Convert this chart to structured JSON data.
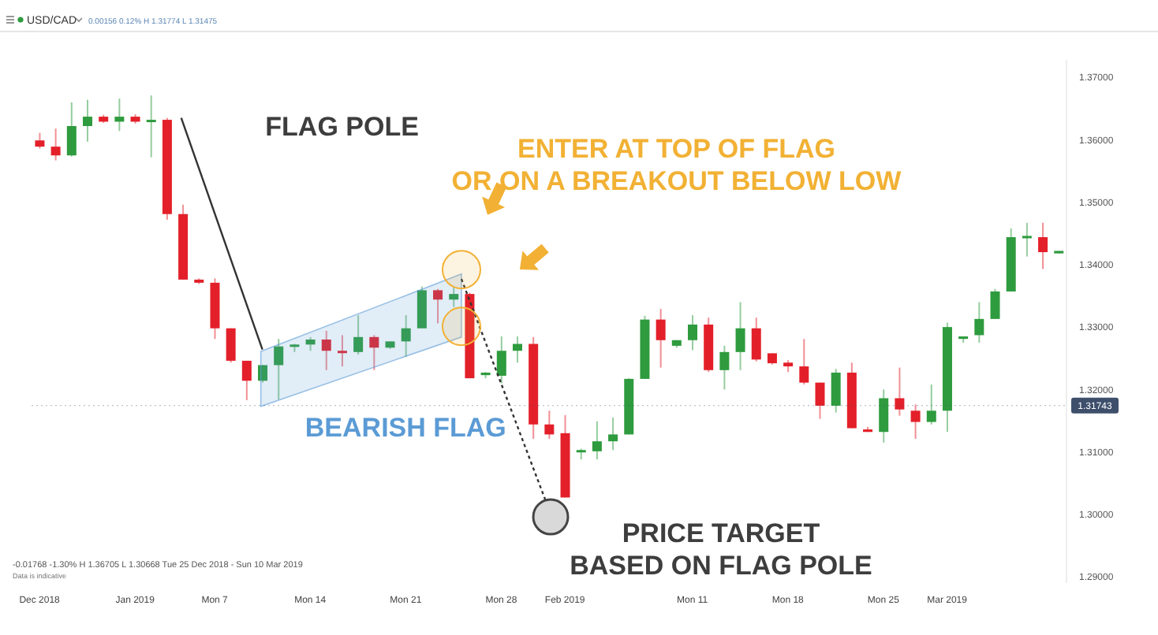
{
  "chart_data": {
    "type": "candlestick",
    "title": "USD/CAD",
    "subtitle": "0.00156 0.12% H 1.31774 L 1.31475",
    "annotations": [
      "FLAG POLE",
      "ENTER AT TOP OF FLAG\nOR ON A BREAKOUT BELOW LOW",
      "BEARISH FLAG",
      "PRICE TARGET\nBASED ON FLAG POLE",
      "-0.01768 -1.30% H 1.36705 L 1.30668 Tue 25 Dec 2018 - Sun 10 Mar 2019",
      "Data is indicative"
    ],
    "categories": [
      "Dec 2018",
      null,
      null,
      null,
      null,
      null,
      "Jan 2019",
      null,
      null,
      null,
      null,
      "Mon 7",
      null,
      null,
      null,
      null,
      null,
      "Mon 14",
      null,
      null,
      null,
      null,
      null,
      "Mon 21",
      null,
      null,
      null,
      null,
      null,
      "Mon 28",
      null,
      null,
      null,
      "Feb 2019",
      null,
      null,
      null,
      null,
      null,
      null,
      null,
      "Mon 11",
      null,
      null,
      null,
      null,
      null,
      "Mon 18",
      null,
      null,
      null,
      null,
      null,
      "Mon 25",
      null,
      null,
      null,
      "Mar 2019",
      null,
      null,
      null,
      null,
      null,
      null,
      null
    ],
    "ohlc": [
      [
        1.3599,
        1.3611,
        1.3586,
        1.3589
      ],
      [
        1.3589,
        1.3618,
        1.3567,
        1.3575
      ],
      [
        1.3575,
        1.366,
        1.3573,
        1.3622
      ],
      [
        1.3622,
        1.3664,
        1.3597,
        1.3637
      ],
      [
        1.3637,
        1.364,
        1.3627,
        1.3629
      ],
      [
        1.3629,
        1.3666,
        1.3614,
        1.3637
      ],
      [
        1.3637,
        1.3641,
        1.3626,
        1.3629
      ],
      [
        1.3629,
        1.3671,
        1.3572,
        1.3632
      ],
      [
        1.3632,
        1.3635,
        1.3472,
        1.3481
      ],
      [
        1.3481,
        1.3496,
        1.3376,
        1.3376
      ],
      [
        1.3376,
        1.3378,
        1.3369,
        1.3371
      ],
      [
        1.3371,
        1.3378,
        1.3281,
        1.3298
      ],
      [
        1.3298,
        1.3298,
        1.3243,
        1.3246
      ],
      [
        1.3246,
        1.3246,
        1.3183,
        1.3214
      ],
      [
        1.3214,
        1.3239,
        1.3211,
        1.3239
      ],
      [
        1.3239,
        1.3281,
        1.3184,
        1.3269
      ],
      [
        1.3269,
        1.3273,
        1.326,
        1.3272
      ],
      [
        1.3272,
        1.3284,
        1.3262,
        1.328
      ],
      [
        1.328,
        1.3294,
        1.3231,
        1.3262
      ],
      [
        1.3262,
        1.3287,
        1.3237,
        1.326
      ],
      [
        1.326,
        1.3319,
        1.3256,
        1.3284
      ],
      [
        1.3284,
        1.3287,
        1.3231,
        1.3267
      ],
      [
        1.3267,
        1.3277,
        1.3265,
        1.3277
      ],
      [
        1.3277,
        1.3319,
        1.3252,
        1.3298
      ],
      [
        1.3298,
        1.3365,
        1.3298,
        1.3359
      ],
      [
        1.3359,
        1.3361,
        1.3306,
        1.3344
      ],
      [
        1.3344,
        1.3365,
        1.3332,
        1.3353
      ],
      [
        1.3353,
        1.3355,
        1.3218,
        1.3218
      ],
      [
        1.3223,
        1.3228,
        1.3218,
        1.3227
      ],
      [
        1.3222,
        1.3285,
        1.321,
        1.3262
      ],
      [
        1.3262,
        1.3285,
        1.3243,
        1.3273
      ],
      [
        1.3273,
        1.3284,
        1.3121,
        1.3144
      ],
      [
        1.3144,
        1.3166,
        1.3121,
        1.3128
      ],
      [
        1.313,
        1.3159,
        1.3027,
        1.3027
      ],
      [
        1.3101,
        1.3105,
        1.3088,
        1.3103
      ],
      [
        1.3101,
        1.3149,
        1.3088,
        1.3117
      ],
      [
        1.3117,
        1.3155,
        1.3103,
        1.3128
      ],
      [
        1.3128,
        1.3218,
        1.3128,
        1.3217
      ],
      [
        1.3217,
        1.3318,
        1.3217,
        1.3312
      ],
      [
        1.3312,
        1.3329,
        1.3235,
        1.3279
      ],
      [
        1.327,
        1.3279,
        1.3267,
        1.3279
      ],
      [
        1.3279,
        1.3319,
        1.3263,
        1.3304
      ],
      [
        1.3304,
        1.3315,
        1.3228,
        1.3231
      ],
      [
        1.3231,
        1.327,
        1.32,
        1.326
      ],
      [
        1.326,
        1.334,
        1.3231,
        1.3298
      ],
      [
        1.3298,
        1.3315,
        1.3245,
        1.3248
      ],
      [
        1.3258,
        1.3258,
        1.324,
        1.3242
      ],
      [
        1.3243,
        1.3247,
        1.3228,
        1.3237
      ],
      [
        1.3237,
        1.3281,
        1.3208,
        1.3211
      ],
      [
        1.3211,
        1.3211,
        1.3153,
        1.3174
      ],
      [
        1.3174,
        1.3233,
        1.3163,
        1.3227
      ],
      [
        1.3227,
        1.3243,
        1.3138,
        1.3138
      ],
      [
        1.3136,
        1.314,
        1.3132,
        1.3132
      ],
      [
        1.3132,
        1.32,
        1.3115,
        1.3186
      ],
      [
        1.3186,
        1.3235,
        1.3158,
        1.3168
      ],
      [
        1.3166,
        1.3176,
        1.3121,
        1.3148
      ],
      [
        1.3148,
        1.3208,
        1.3144,
        1.3166
      ],
      [
        1.3166,
        1.3307,
        1.3132,
        1.33
      ],
      [
        1.3281,
        1.3285,
        1.3275,
        1.3285
      ],
      [
        1.3287,
        1.334,
        1.3275,
        1.3313
      ],
      [
        1.3313,
        1.3361,
        1.3313,
        1.3357
      ],
      [
        1.3357,
        1.3458,
        1.3357,
        1.3444
      ],
      [
        1.3444,
        1.3467,
        1.3413,
        1.3446
      ],
      [
        1.3444,
        1.3467,
        1.3393,
        1.342
      ],
      [
        1.3418,
        1.3422,
        1.3418,
        1.3422
      ]
    ],
    "colors": [
      "#e3202a",
      "#e3202a",
      "#2e9b3e",
      "#2e9b3e",
      "#e3202a",
      "#2e9b3e",
      "#e3202a",
      "#2e9b3e",
      "#e3202a",
      "#e3202a",
      "#e3202a",
      "#e3202a",
      "#e3202a",
      "#e3202a",
      "#2e9b3e",
      "#2e9b3e",
      "#2e9b3e",
      "#2e9b3e",
      "#e3202a",
      "#e3202a",
      "#2e9b3e",
      "#e3202a",
      "#2e9b3e",
      "#2e9b3e",
      "#2e9b3e",
      "#e3202a",
      "#2e9b3e",
      "#e3202a",
      "#2e9b3e",
      "#2e9b3e",
      "#2e9b3e",
      "#e3202a",
      "#e3202a",
      "#e3202a",
      "#2e9b3e",
      "#2e9b3e",
      "#2e9b3e",
      "#2e9b3e",
      "#2e9b3e",
      "#e3202a",
      "#2e9b3e",
      "#2e9b3e",
      "#e3202a",
      "#2e9b3e",
      "#2e9b3e",
      "#e3202a",
      "#e3202a",
      "#e3202a",
      "#e3202a",
      "#e3202a",
      "#2e9b3e",
      "#e3202a",
      "#e3202a",
      "#2e9b3e",
      "#e3202a",
      "#e3202a",
      "#2e9b3e",
      "#2e9b3e",
      "#2e9b3e",
      "#2e9b3e",
      "#2e9b3e",
      "#2e9b3e",
      "#2e9b3e",
      "#e3202a",
      "#2e9b3e"
    ],
    "ylim": [
      1.289,
      1.3728
    ],
    "yticks": [
      {
        "value": 1.29,
        "label": "1.29000"
      },
      {
        "value": 1.3,
        "label": "1.30000"
      },
      {
        "value": 1.31,
        "label": "1.31000"
      },
      {
        "value": 1.32,
        "label": "1.32000"
      },
      {
        "value": 1.33,
        "label": "1.33000"
      },
      {
        "value": 1.34,
        "label": "1.34000"
      },
      {
        "value": 1.35,
        "label": "1.35000"
      },
      {
        "value": 1.36,
        "label": "1.36000"
      },
      {
        "value": 1.37,
        "label": "1.37000"
      }
    ],
    "ref_lines": [
      {
        "axis": "y",
        "value": 1.31743,
        "label": "1.31743",
        "color": "#3d4f6b",
        "line_style": "dotted"
      }
    ]
  }
}
